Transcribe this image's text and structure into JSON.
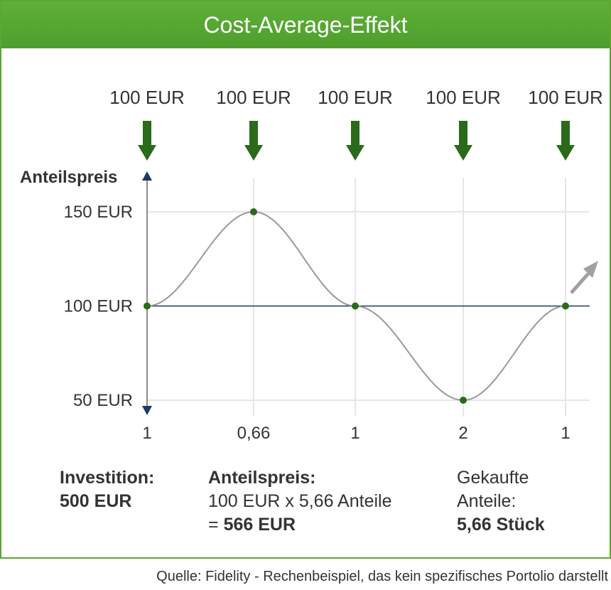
{
  "header": {
    "title": "Cost-Average-Effekt"
  },
  "chart_data": {
    "type": "line",
    "ylabel": "Anteilspreis",
    "y_ticks": [
      "150 EUR",
      "100 EUR",
      "50 EUR"
    ],
    "y_tick_values": [
      150,
      100,
      50
    ],
    "ylim": [
      50,
      150
    ],
    "investments": [
      "100 EUR",
      "100 EUR",
      "100 EUR",
      "100 EUR",
      "100 EUR"
    ],
    "shares_labels": [
      "1",
      "0,66",
      "1",
      "2",
      "1"
    ],
    "prices": [
      100,
      150,
      100,
      50,
      100
    ],
    "grid": true,
    "colors": {
      "curve": "#999999",
      "point": "#2a6a1a",
      "arrow": "#2a6a1a",
      "axis": "#1e3a5f",
      "grid": "#e6e6e6"
    }
  },
  "summary": {
    "investition_label": "Investition:",
    "investition_value": "500 EUR",
    "anteilspreis_label": "Anteilspreis:",
    "anteilspreis_calc": "100 EUR x 5,66 Anteile",
    "anteilspreis_eq": "=",
    "anteilspreis_value": "566 EUR",
    "gekaufte_line1": "Gekaufte",
    "gekaufte_line2": "Anteile:",
    "gekaufte_value": "5,66 Stück"
  },
  "source": "Quelle: Fidelity - Rechenbeispiel, das kein spezifisches Portolio darstellt"
}
